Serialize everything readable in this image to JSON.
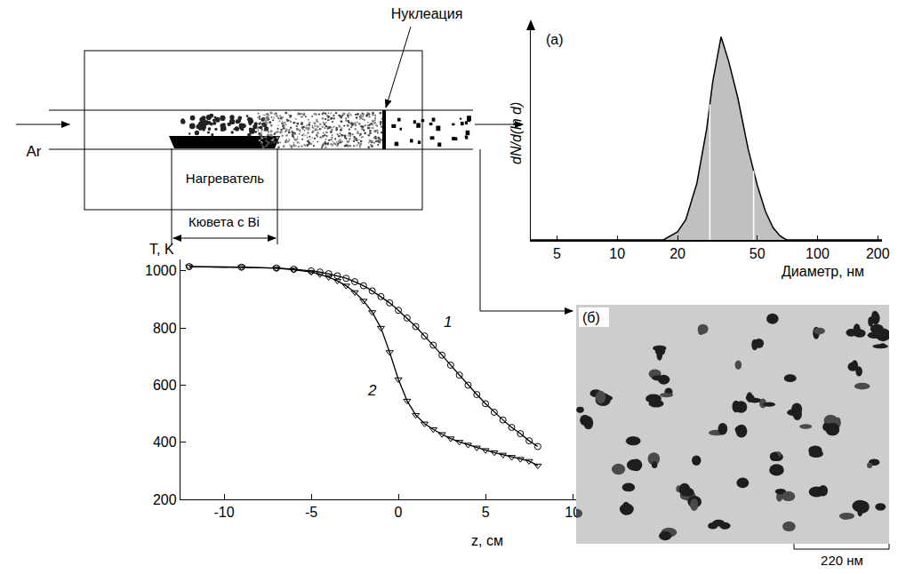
{
  "diagram": {
    "gas": "Ar",
    "heater": "Нагреватель",
    "cuvette": "Кювета с Bi",
    "nucleation": "Нуклеация"
  },
  "chart_data": [
    {
      "type": "line",
      "x_label": "z, см",
      "y_label": "T, K",
      "xlim": [
        -12.5,
        10.3
      ],
      "ylim": [
        200,
        1040
      ],
      "xticks": [
        -10,
        -5,
        0,
        5,
        10
      ],
      "yticks": [
        200,
        400,
        600,
        800,
        1000
      ],
      "x": [
        -12,
        -9,
        -7,
        -6,
        -5,
        -4.5,
        -4,
        -3.5,
        -3,
        -2.5,
        -2,
        -1.5,
        -1,
        -0.5,
        0,
        0.5,
        1,
        1.5,
        2,
        2.5,
        3,
        3.5,
        4,
        4.5,
        5,
        5.5,
        6,
        6.5,
        7,
        7.5,
        8
      ],
      "series": [
        {
          "name": "1",
          "color": "#000000",
          "marker": "circle-open",
          "values": [
            1015,
            1013,
            1010,
            1006,
            1000,
            996,
            990,
            983,
            974,
            962,
            948,
            930,
            910,
            888,
            862,
            835,
            805,
            772,
            740,
            705,
            670,
            635,
            600,
            567,
            535,
            505,
            478,
            452,
            430,
            405,
            385
          ]
        },
        {
          "name": "2",
          "color": "#000000",
          "marker": "triangle-down-open",
          "values": [
            1015,
            1013,
            1009,
            1004,
            996,
            988,
            978,
            965,
            948,
            925,
            895,
            855,
            800,
            715,
            620,
            545,
            495,
            465,
            445,
            428,
            413,
            401,
            391,
            381,
            372,
            364,
            356,
            348,
            341,
            334,
            318
          ]
        }
      ]
    },
    {
      "type": "area",
      "title": "(a)",
      "x_label": "Диаметр, нм",
      "y_label": "dN/d(ln d)",
      "log": "x",
      "tick_labels": "x",
      "color": "#c0c0c0",
      "xlim": [
        3.7,
        210
      ],
      "ylim": [
        0,
        1.05
      ],
      "xticks": [
        5,
        10,
        20,
        50,
        100,
        200
      ],
      "x": [
        3.7,
        17,
        20,
        22,
        25,
        28,
        30,
        33,
        36,
        40,
        45,
        50,
        55,
        60,
        65,
        70,
        210
      ],
      "values": [
        0,
        0,
        0.04,
        0.1,
        0.28,
        0.55,
        0.78,
        1.0,
        0.88,
        0.7,
        0.45,
        0.27,
        0.14,
        0.06,
        0.02,
        0,
        0
      ],
      "vlines": [
        29,
        48
      ]
    }
  ],
  "image": {
    "label": "(б)",
    "scale_bar": "220 нм"
  }
}
